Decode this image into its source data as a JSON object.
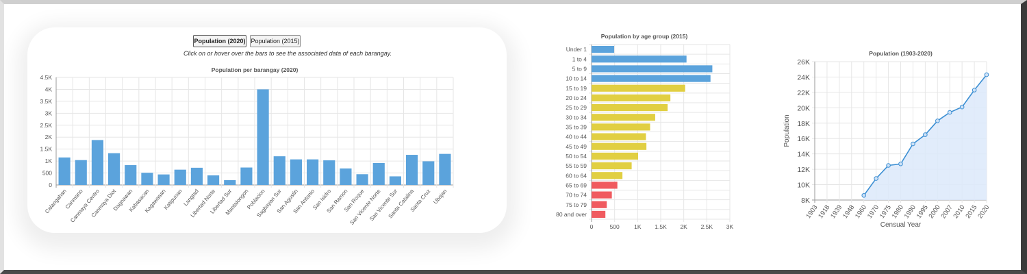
{
  "buttons": {
    "pop2020": "Population (2020)",
    "pop2015": "Population (2015)"
  },
  "instructions": "Click on or hover over the bars to see the associated data of each barangay.",
  "colors": {
    "blue": "#5ba3dc",
    "yellow": "#e1cf42",
    "red": "#f05a5f",
    "line": "#3c8fd3",
    "fill": "#dce9fa"
  },
  "chart_data": [
    {
      "type": "bar",
      "title": "Population per barangay (2020)",
      "xlabel": "",
      "ylabel": "",
      "ylim": [
        0,
        4500
      ],
      "y_ticks": [
        "0",
        "500",
        "1K",
        "1.5K",
        "2K",
        "2.5K",
        "3K",
        "3.5K",
        "4K",
        "4.5K"
      ],
      "categories": [
        "Calangahan",
        "Canmano",
        "Canmaya Centro",
        "Canmaya Diot",
        "Dagnawan",
        "Kabasacan",
        "Kagawasan",
        "Katipunan",
        "Langtad",
        "Libertad Norte",
        "Libertad Sur",
        "Mantalongon",
        "Poblacion",
        "Sagbayan Sur",
        "San Agustin",
        "San Antonio",
        "San Isidro",
        "San Ramon",
        "San Roque",
        "San Vicente Norte",
        "San Vicente Sur",
        "Santa Catalina",
        "Santa Cruz",
        "Ubojan"
      ],
      "values": [
        1150,
        1040,
        1880,
        1330,
        830,
        510,
        440,
        640,
        720,
        400,
        200,
        730,
        4000,
        1200,
        1070,
        1070,
        1030,
        690,
        450,
        920,
        360,
        1260,
        990,
        1300
      ],
      "grid": true
    },
    {
      "type": "bar",
      "orientation": "horizontal",
      "title": "Population by age group (2015)",
      "xlabel": "",
      "ylabel": "",
      "xlim": [
        0,
        3000
      ],
      "x_ticks": [
        "0",
        "500",
        "1K",
        "1.5K",
        "2K",
        "2.5K",
        "3K"
      ],
      "categories": [
        "Under 1",
        "1 to 4",
        "5 to 9",
        "10 to 14",
        "15 to 19",
        "20 to 24",
        "25 to 29",
        "30 to 34",
        "35 to 39",
        "40 to 44",
        "45 to 49",
        "50 to 54",
        "55 to 59",
        "60 to 64",
        "65 to 69",
        "70 to 74",
        "75 to 79",
        "80 and over"
      ],
      "values": [
        490,
        2060,
        2620,
        2580,
        2030,
        1710,
        1650,
        1380,
        1270,
        1180,
        1190,
        1010,
        870,
        670,
        560,
        440,
        330,
        300
      ],
      "bar_colors": [
        "blue",
        "blue",
        "blue",
        "blue",
        "yellow",
        "yellow",
        "yellow",
        "yellow",
        "yellow",
        "yellow",
        "yellow",
        "yellow",
        "yellow",
        "yellow",
        "red",
        "red",
        "red",
        "red"
      ],
      "grid": true
    },
    {
      "type": "area",
      "title": "Population (1903-2020)",
      "xlabel": "Censual Year",
      "ylabel": "Population",
      "ylim": [
        8000,
        26000
      ],
      "y_ticks": [
        "8K",
        "10K",
        "12K",
        "14K",
        "16K",
        "18K",
        "20K",
        "22K",
        "24K",
        "26K"
      ],
      "x": [
        "1903",
        "1918",
        "1939",
        "1948",
        "1960",
        "1970",
        "1975",
        "1980",
        "1990",
        "1995",
        "2000",
        "2007",
        "2010",
        "2015",
        "2020"
      ],
      "values": [
        null,
        null,
        null,
        null,
        8600,
        10800,
        12500,
        12700,
        15300,
        16500,
        18300,
        19400,
        20100,
        22300,
        24300
      ],
      "grid": true
    }
  ]
}
